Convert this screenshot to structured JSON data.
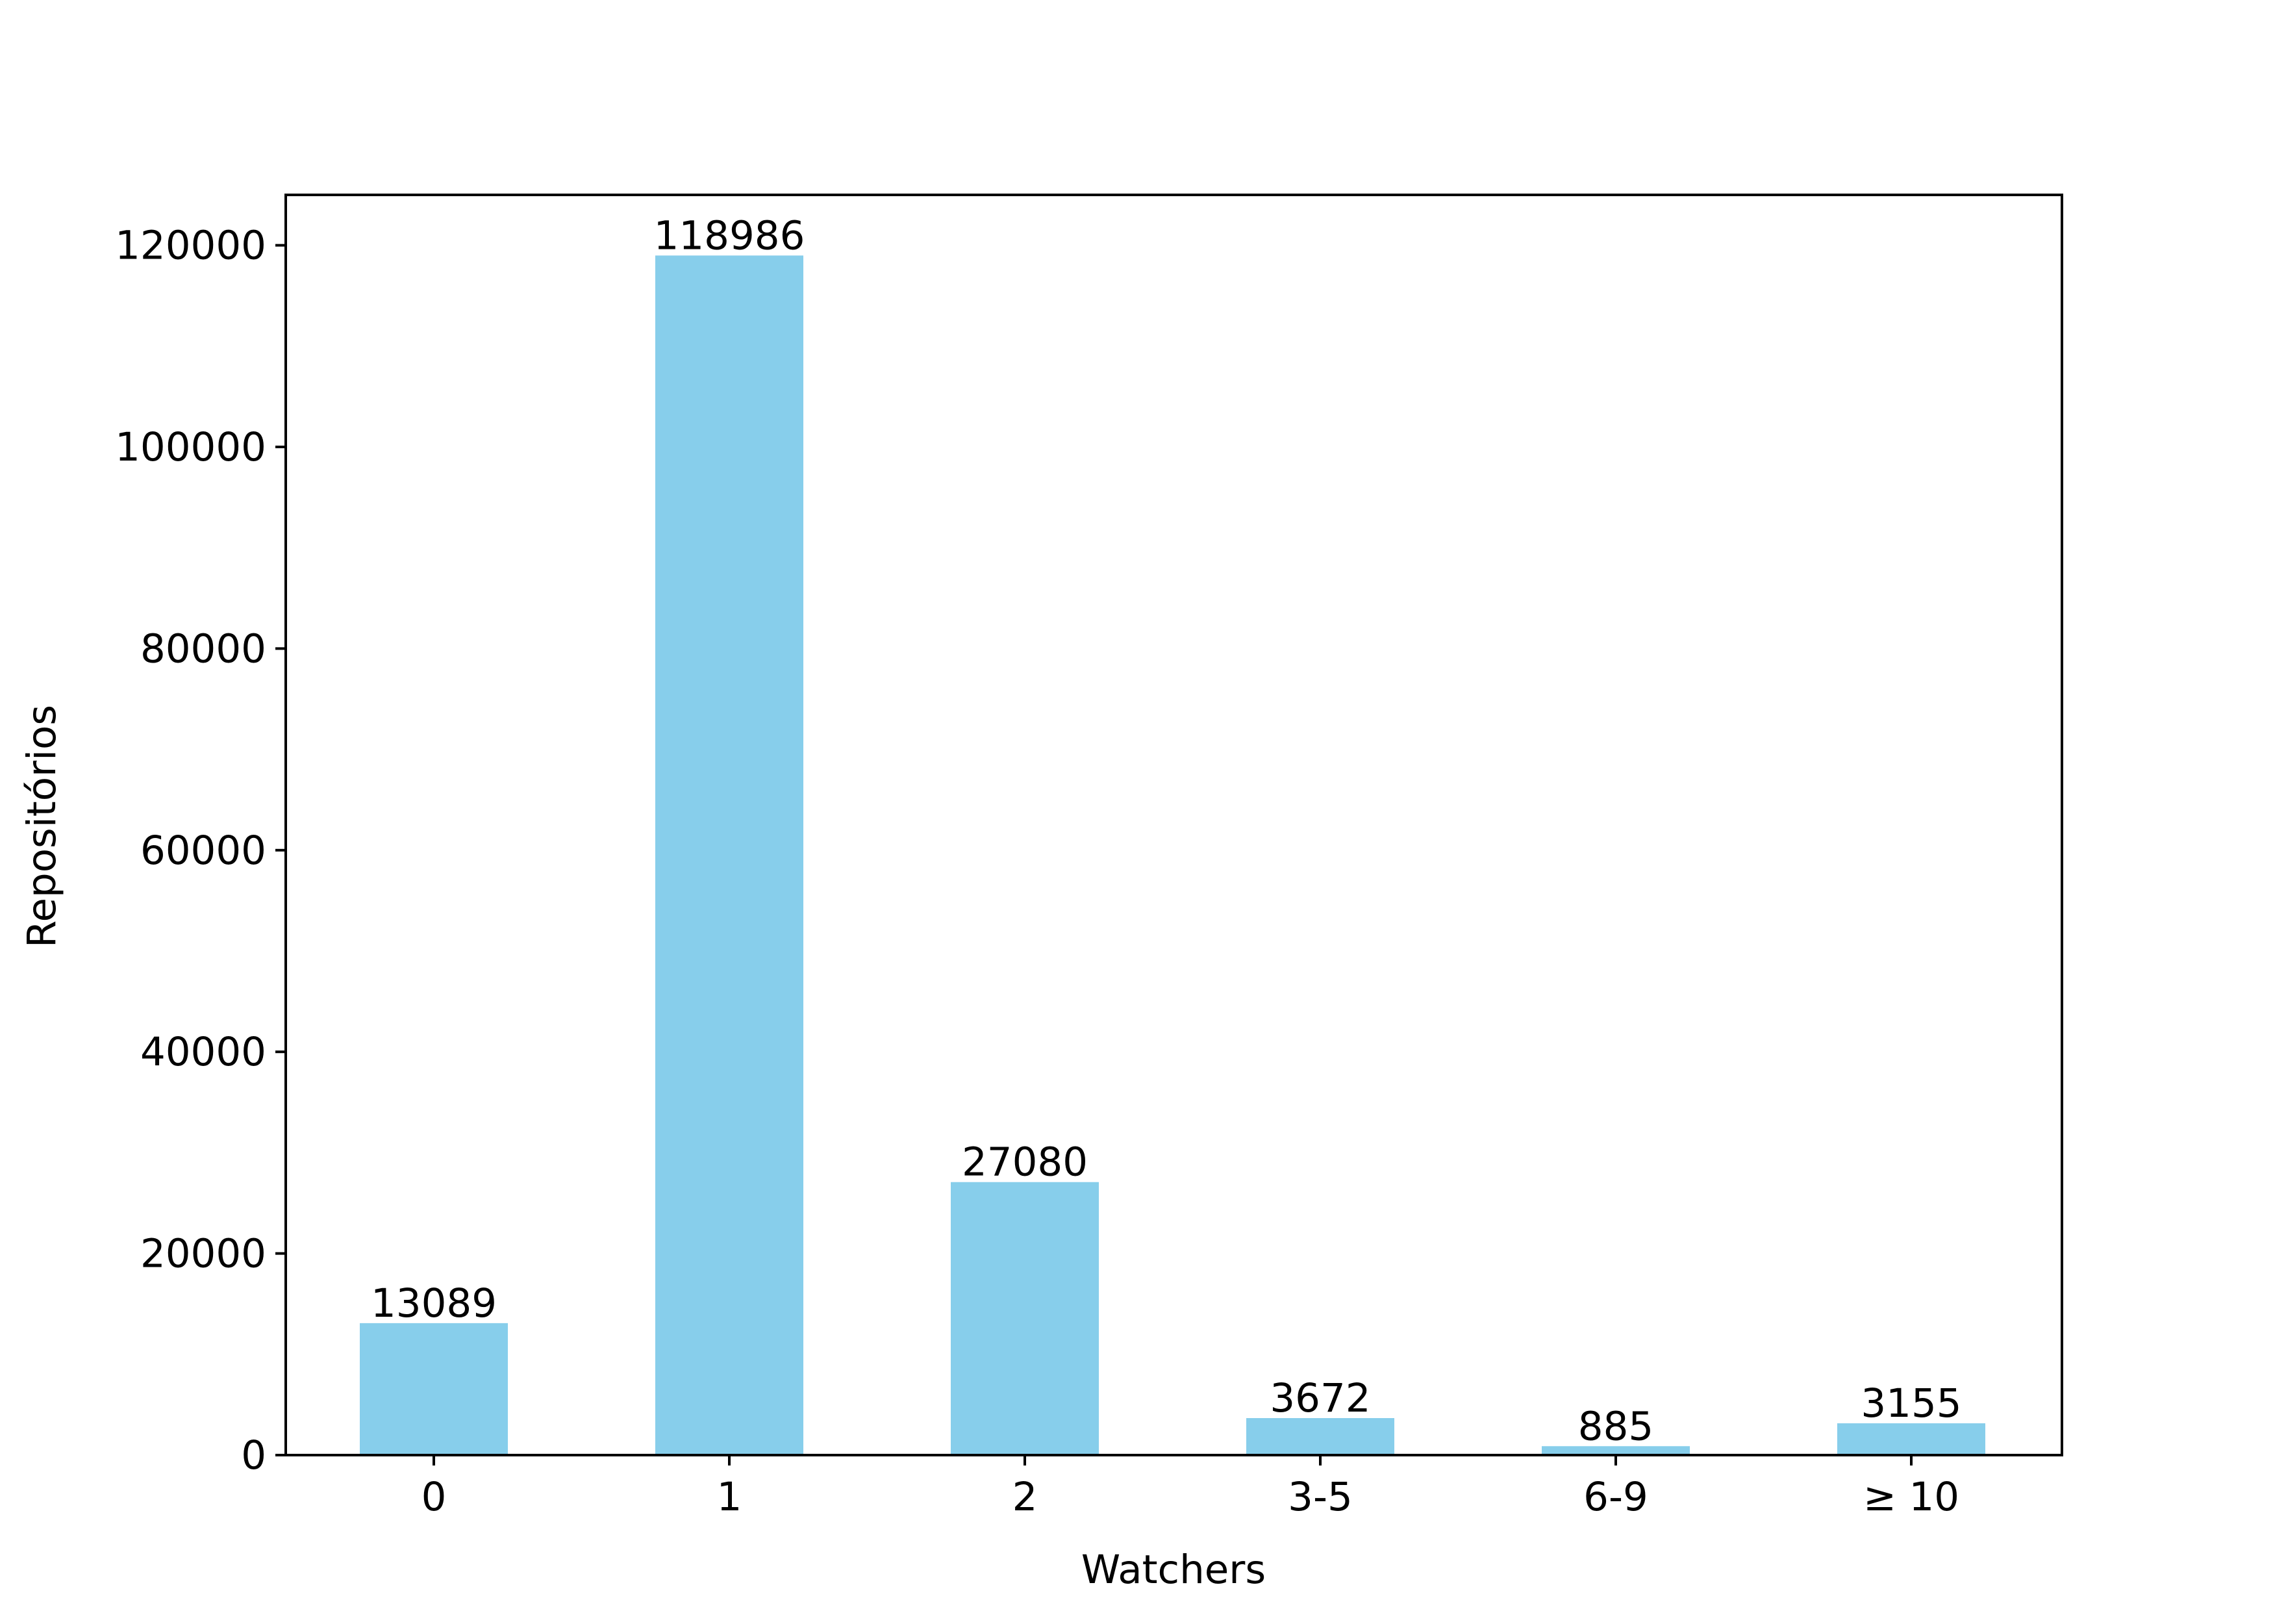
{
  "colors": {
    "bar": "#87CEEB",
    "axis": "#000000",
    "background": "#ffffff"
  },
  "chart_data": {
    "type": "bar",
    "title": "",
    "xlabel": "Watchers",
    "ylabel": "Repositórios",
    "categories": [
      "0",
      "1",
      "2",
      "3-5",
      "6-9",
      "≥ 10"
    ],
    "values": [
      13089,
      118986,
      27080,
      3672,
      885,
      3155
    ],
    "data_labels": [
      "13089",
      "118986",
      "27080",
      "3672",
      "885",
      "3155"
    ],
    "ylim": [
      0,
      125000
    ],
    "yticks": [
      0,
      20000,
      40000,
      60000,
      80000,
      100000,
      120000
    ],
    "ytick_labels": [
      "0",
      "20000",
      "40000",
      "60000",
      "80000",
      "100000",
      "120000"
    ],
    "grid": false,
    "legend": "none"
  }
}
